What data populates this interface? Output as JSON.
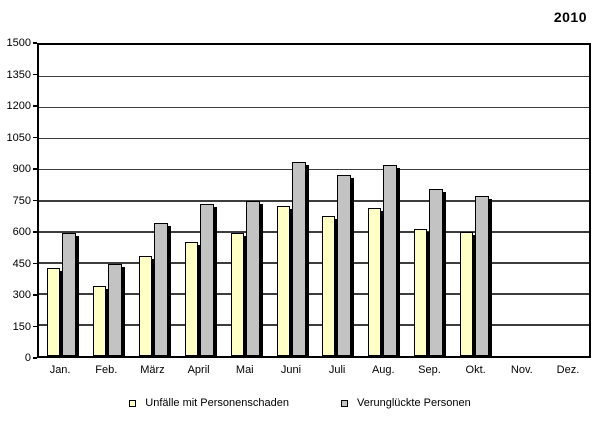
{
  "title": "2010",
  "chart_data": {
    "type": "bar",
    "title": "2010",
    "categories": [
      "Jan.",
      "Feb.",
      "März",
      "April",
      "Mai",
      "Juni",
      "Juli",
      "Aug.",
      "Sep.",
      "Okt.",
      "Nov.",
      "Dez."
    ],
    "series": [
      {
        "name": "Unfälle mit Personenschaden",
        "color": "#FFFFC6",
        "values": [
          425,
          340,
          480,
          550,
          595,
          725,
          675,
          715,
          615,
          600,
          null,
          null
        ]
      },
      {
        "name": "Verunglückte Personen",
        "color": "#C3C3C3",
        "values": [
          595,
          445,
          640,
          735,
          750,
          935,
          875,
          920,
          805,
          770,
          null,
          null
        ]
      }
    ],
    "xlabel": "",
    "ylabel": "",
    "ylim": [
      0,
      1500
    ],
    "yticks": [
      1500,
      1350,
      1200,
      1050,
      900,
      750,
      600,
      450,
      300,
      150,
      0
    ],
    "grid": "horizontal",
    "legend_position": "bottom",
    "bar_outline_color": "#000000",
    "shadow_color": "#000000"
  }
}
